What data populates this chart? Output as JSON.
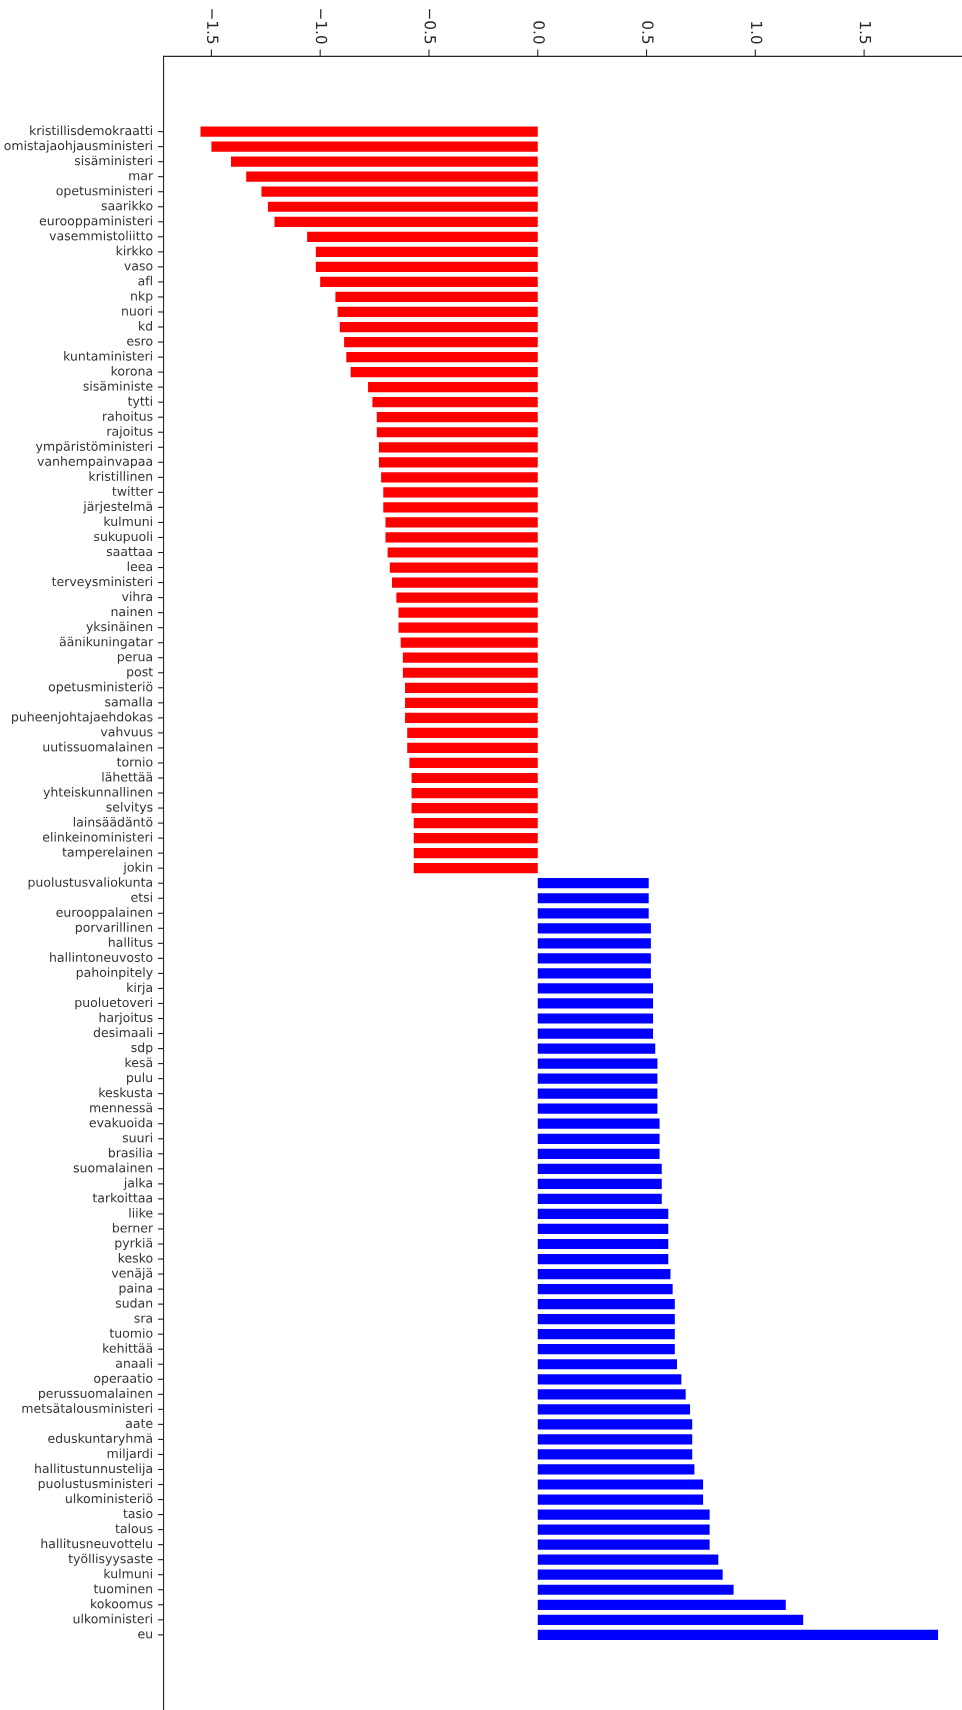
{
  "chart_data": {
    "type": "bar",
    "orientation": "horizontal",
    "categories": [
      "kristillisdemokraatti",
      "omistajaohjausministeri",
      "sisäministeri",
      "mar",
      "opetusministeri",
      "saarikko",
      "eurooppaministeri",
      "vasemmistoliitto",
      "kirkko",
      "vaso",
      "afl",
      "nkp",
      "nuori",
      "kd",
      "esro",
      "kuntaministeri",
      "korona",
      "sisäministe",
      "tytti",
      "rahoitus",
      "rajoitus",
      "ympäristöministeri",
      "vanhempainvapaa",
      "kristillinen",
      "twitter",
      "järjestelmä",
      "kulmuni",
      "sukupuoli",
      "saattaa",
      "leea",
      "terveysministeri",
      "vihra",
      "nainen",
      "yksinäinen",
      "äänikuningatar",
      "perua",
      "post",
      "opetusministeriö",
      "samalla",
      "puheenjohtajaehdokas",
      "vahvuus",
      "uutissuomalainen",
      "tornio",
      "lähettää",
      "yhteiskunnallinen",
      "selvitys",
      "lainsäädäntö",
      "elinkeinoministeri",
      "tamperelainen",
      "jokin",
      "puolustusvaliokunta",
      "etsi",
      "eurooppalainen",
      "porvarillinen",
      "hallitus",
      "hallintoneuvosto",
      "pahoinpitely",
      "kirja",
      "puoluetoveri",
      "harjoitus",
      "desimaali",
      "sdp",
      "kesä",
      "pulu",
      "keskusta",
      "mennessä",
      "evakuoida",
      "suuri",
      "brasilia",
      "suomalainen",
      "jalka",
      "tarkoittaa",
      "liike",
      "berner",
      "pyrkiä",
      "kesko",
      "venäjä",
      "paina",
      "sudan",
      "sra",
      "tuomio",
      "kehittää",
      "anaali",
      "operaatio",
      "perussuomalainen",
      "metsätalousministeri",
      "aate",
      "eduskuntaryhmä",
      "miljardi",
      "hallitustunnustelija",
      "puolustusministeri",
      "ulkoministeriö",
      "tasio",
      "talous",
      "hallitusneuvottelu",
      "työllisyysaste",
      "kulmuni",
      "tuominen",
      "kokoomus",
      "ulkoministeri",
      "eu"
    ],
    "values": [
      -1.55,
      -1.5,
      -1.41,
      -1.34,
      -1.27,
      -1.24,
      -1.21,
      -1.06,
      -1.02,
      -1.02,
      -1.0,
      -0.93,
      -0.92,
      -0.91,
      -0.89,
      -0.88,
      -0.86,
      -0.78,
      -0.76,
      -0.74,
      -0.74,
      -0.73,
      -0.73,
      -0.72,
      -0.71,
      -0.71,
      -0.7,
      -0.7,
      -0.69,
      -0.68,
      -0.67,
      -0.65,
      -0.64,
      -0.64,
      -0.63,
      -0.62,
      -0.62,
      -0.61,
      -0.61,
      -0.61,
      -0.6,
      -0.6,
      -0.59,
      -0.58,
      -0.58,
      -0.58,
      -0.57,
      -0.57,
      -0.57,
      -0.57,
      0.51,
      0.51,
      0.51,
      0.52,
      0.52,
      0.52,
      0.52,
      0.53,
      0.53,
      0.53,
      0.53,
      0.54,
      0.55,
      0.55,
      0.55,
      0.55,
      0.56,
      0.56,
      0.56,
      0.57,
      0.57,
      0.57,
      0.6,
      0.6,
      0.6,
      0.6,
      0.61,
      0.62,
      0.63,
      0.63,
      0.63,
      0.63,
      0.64,
      0.66,
      0.68,
      0.7,
      0.71,
      0.71,
      0.71,
      0.72,
      0.76,
      0.76,
      0.79,
      0.79,
      0.79,
      0.83,
      0.85,
      0.9,
      1.14,
      1.22,
      1.84
    ],
    "colors": [
      "#ff0000",
      "#ff0000",
      "#ff0000",
      "#ff0000",
      "#ff0000",
      "#ff0000",
      "#ff0000",
      "#ff0000",
      "#ff0000",
      "#ff0000",
      "#ff0000",
      "#ff0000",
      "#ff0000",
      "#ff0000",
      "#ff0000",
      "#ff0000",
      "#ff0000",
      "#ff0000",
      "#ff0000",
      "#ff0000",
      "#ff0000",
      "#ff0000",
      "#ff0000",
      "#ff0000",
      "#ff0000",
      "#ff0000",
      "#ff0000",
      "#ff0000",
      "#ff0000",
      "#ff0000",
      "#ff0000",
      "#ff0000",
      "#ff0000",
      "#ff0000",
      "#ff0000",
      "#ff0000",
      "#ff0000",
      "#ff0000",
      "#ff0000",
      "#ff0000",
      "#ff0000",
      "#ff0000",
      "#ff0000",
      "#ff0000",
      "#ff0000",
      "#ff0000",
      "#ff0000",
      "#ff0000",
      "#ff0000",
      "#ff0000",
      "#0000ff",
      "#0000ff",
      "#0000ff",
      "#0000ff",
      "#0000ff",
      "#0000ff",
      "#0000ff",
      "#0000ff",
      "#0000ff",
      "#0000ff",
      "#0000ff",
      "#0000ff",
      "#0000ff",
      "#0000ff",
      "#0000ff",
      "#0000ff",
      "#0000ff",
      "#0000ff",
      "#0000ff",
      "#0000ff",
      "#0000ff",
      "#0000ff",
      "#0000ff",
      "#0000ff",
      "#0000ff",
      "#0000ff",
      "#0000ff",
      "#0000ff",
      "#0000ff",
      "#0000ff",
      "#0000ff",
      "#0000ff",
      "#0000ff",
      "#0000ff",
      "#0000ff",
      "#0000ff",
      "#0000ff",
      "#0000ff",
      "#0000ff",
      "#0000ff",
      "#0000ff",
      "#0000ff",
      "#0000ff",
      "#0000ff",
      "#0000ff",
      "#0000ff",
      "#0000ff",
      "#0000ff",
      "#0000ff",
      "#0000ff",
      "#0000ff"
    ],
    "xlim": [
      -1.72,
      1.95
    ],
    "xticks": [
      {
        "value": -1.5,
        "label": "−1.5"
      },
      {
        "value": -1.0,
        "label": "−1.0"
      },
      {
        "value": -0.5,
        "label": "−0.5"
      },
      {
        "value": 0.0,
        "label": "0.0"
      },
      {
        "value": 0.5,
        "label": "0.5"
      },
      {
        "value": 1.0,
        "label": "1.0"
      },
      {
        "value": 1.5,
        "label": "1.5"
      }
    ],
    "grid": false,
    "legend": false
  }
}
